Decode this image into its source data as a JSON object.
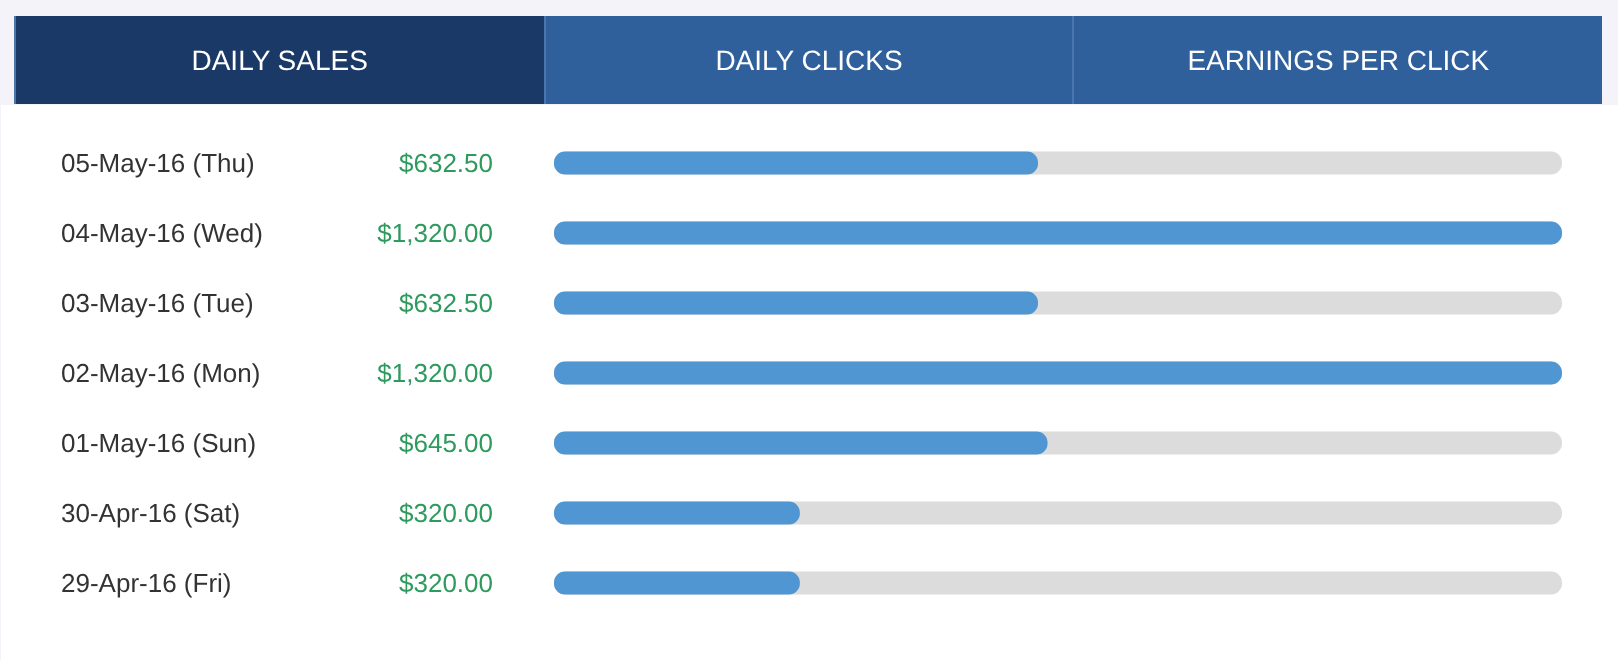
{
  "chart_data": {
    "type": "bar",
    "orientation": "horizontal",
    "title": "DAILY SALES",
    "annotations": [
      "DAILY CLICKS",
      "EARNINGS PER CLICK"
    ],
    "categories": [
      "05-May-16 (Thu)",
      "04-May-16 (Wed)",
      "03-May-16 (Tue)",
      "02-May-16 (Mon)",
      "01-May-16 (Sun)",
      "30-Apr-16 (Sat)",
      "29-Apr-16 (Fri)"
    ],
    "values": [
      632.5,
      1320,
      632.5,
      1320,
      645,
      320,
      320
    ],
    "value_labels": [
      "$632.50",
      "$1,320.00",
      "$632.50",
      "$1,320.00",
      "$645.00",
      "$320.00",
      "$320.00"
    ],
    "color": "#5096d2",
    "xlim": [
      0,
      1320
    ]
  }
}
